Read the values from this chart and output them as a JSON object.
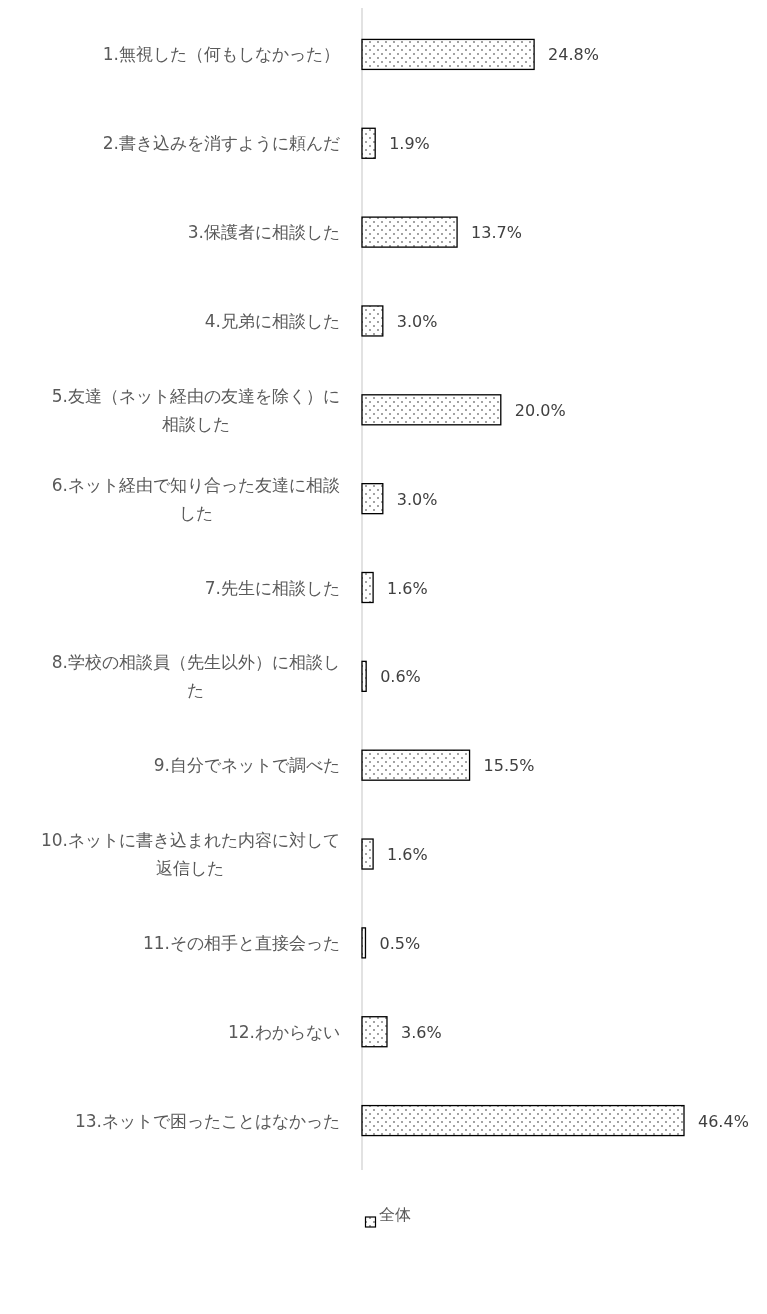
{
  "chart_data": {
    "type": "bar",
    "orientation": "horizontal",
    "categories": [
      "1.無視した（何もしなかった）",
      "2.書き込みを消すように頼んだ",
      "3.保護者に相談した",
      "4.兄弟に相談した",
      "5.友達（ネット経由の友達を除く）に相談した",
      "6.ネット経由で知り合った友達に相談した",
      "7.先生に相談した",
      "8.学校の相談員（先生以外）に相談した",
      "9.自分でネットで調べた",
      "10.ネットに書き込まれた内容に対して返信した",
      "11.その相手と直接会った",
      "12.わからない",
      "13.ネットで困ったことはなかった"
    ],
    "series": [
      {
        "name": "全体",
        "color": "#000000",
        "values": [
          24.8,
          1.9,
          13.7,
          3.0,
          20.0,
          3.0,
          1.6,
          0.6,
          15.5,
          1.6,
          0.5,
          3.6,
          46.4
        ],
        "value_labels": [
          "24.8%",
          "1.9%",
          "13.7%",
          "3.0%",
          "20.0%",
          "3.0%",
          "1.6%",
          "0.6%",
          "15.5%",
          "1.6%",
          "0.5%",
          "3.6%",
          "46.4%"
        ]
      }
    ],
    "legend": "bottom"
  }
}
